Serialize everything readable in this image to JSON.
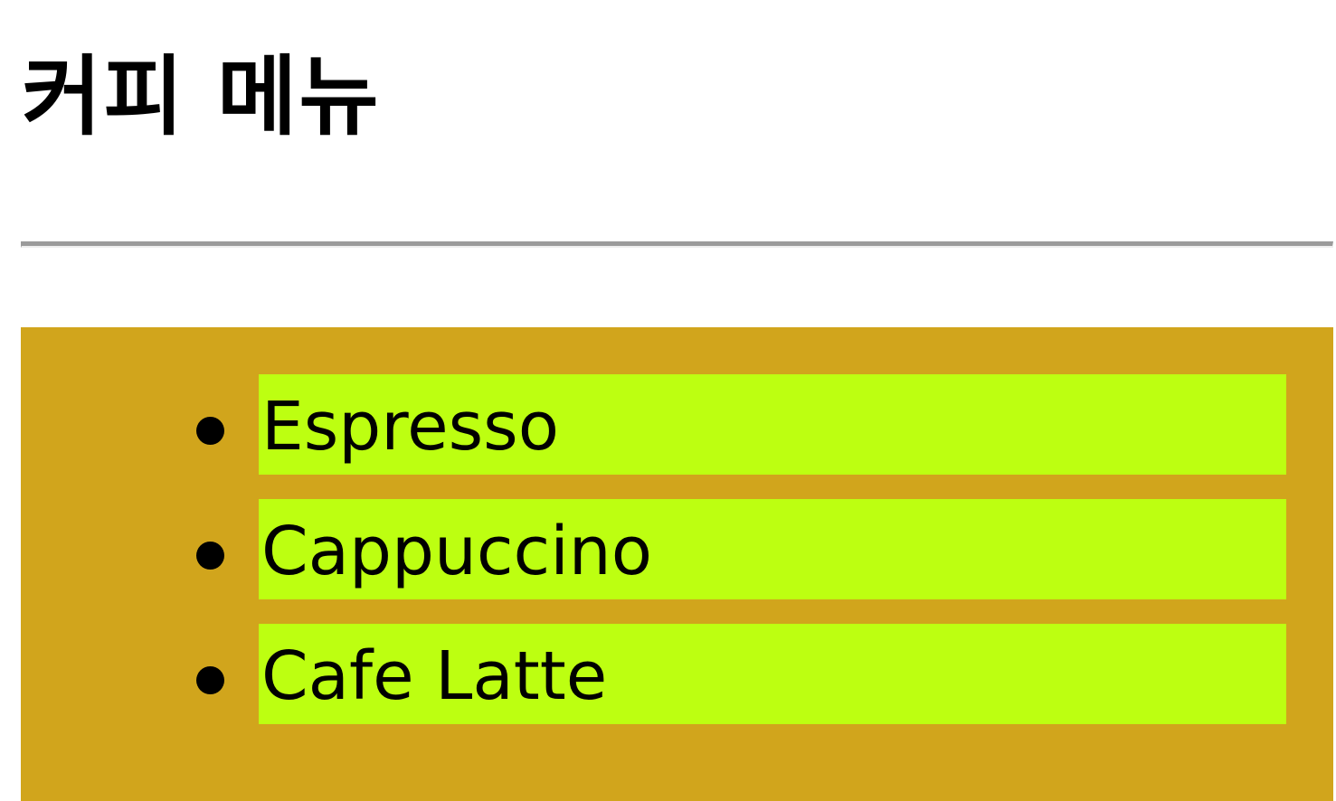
{
  "header": {
    "title": "커피 메뉴"
  },
  "colors": {
    "panel_background": "#D1A51C",
    "item_background": "#BDFF11",
    "divider": "#9B9B9B",
    "text": "#000000"
  },
  "menu": {
    "items": [
      {
        "label": "Espresso"
      },
      {
        "label": "Cappuccino"
      },
      {
        "label": "Cafe Latte"
      }
    ]
  }
}
